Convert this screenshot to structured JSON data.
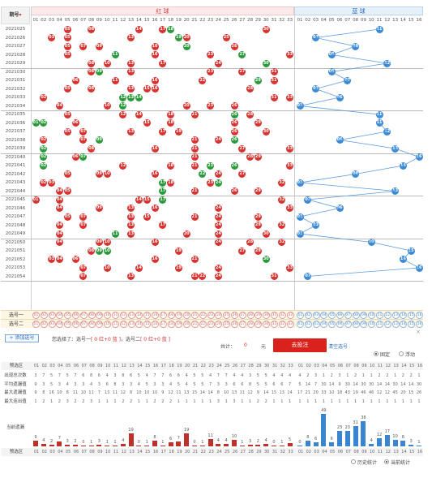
{
  "header": {
    "issue_label": "期号",
    "red_section": "红 球",
    "blue_section": "蓝 球",
    "sort_icon": "sort-down-icon"
  },
  "red_cols": [
    "01",
    "02",
    "03",
    "04",
    "05",
    "06",
    "07",
    "08",
    "09",
    "10",
    "11",
    "12",
    "13",
    "14",
    "15",
    "16",
    "17",
    "18",
    "19",
    "20",
    "21",
    "22",
    "23",
    "24",
    "25",
    "26",
    "27",
    "28",
    "29",
    "30",
    "31",
    "32",
    "33"
  ],
  "blue_cols": [
    "01",
    "02",
    "03",
    "04",
    "05",
    "06",
    "07",
    "08",
    "09",
    "10",
    "11",
    "12",
    "13",
    "14",
    "15",
    "16"
  ],
  "draws": [
    {
      "issue": "2021025",
      "red": [
        "05",
        "08",
        "14",
        "17",
        "18",
        "30"
      ],
      "green": [
        "18"
      ],
      "blue": "11"
    },
    {
      "issue": "2021026",
      "red": [
        "03",
        "05",
        "13",
        "19",
        "20",
        "25"
      ],
      "green": [
        "19"
      ],
      "blue": "03"
    },
    {
      "issue": "2021027",
      "red": [
        "05",
        "07",
        "09",
        "16",
        "20",
        "26"
      ],
      "green": [
        "20"
      ],
      "blue": "08"
    },
    {
      "issue": "2021028",
      "red": [
        "05",
        "11",
        "16",
        "23",
        "27",
        "33"
      ],
      "green": [
        "11",
        "27"
      ],
      "blue": "05"
    },
    {
      "issue": "2021029",
      "red": [
        "08",
        "10",
        "13",
        "17",
        "24",
        "30"
      ],
      "green": [
        "30"
      ],
      "blue": "12"
    },
    {
      "issue": "2021030",
      "red": [
        "08",
        "09",
        "13",
        "23",
        "27",
        "31"
      ],
      "green": [
        "09"
      ],
      "blue": "05"
    },
    {
      "issue": "2021031",
      "red": [
        "06",
        "11",
        "16",
        "22",
        "29",
        "31"
      ],
      "green": [
        "29"
      ],
      "blue": "07"
    },
    {
      "issue": "2021032",
      "red": [
        "05",
        "08",
        "13",
        "15",
        "16",
        "28"
      ],
      "green": [],
      "blue": "03"
    },
    {
      "issue": "2021033",
      "red": [
        "02",
        "12",
        "13",
        "14",
        "31",
        "33"
      ],
      "green": [
        "12",
        "13",
        "14"
      ],
      "blue": "06"
    },
    {
      "issue": "2021034",
      "red": [
        "04",
        "10",
        "12",
        "20",
        "23",
        "26"
      ],
      "green": [
        "12"
      ],
      "blue": "01"
    },
    {
      "issue": "2021035",
      "red": [
        "05",
        "12",
        "14",
        "18",
        "21",
        "26",
        "28"
      ],
      "green": [
        "26"
      ],
      "blue": "11"
    },
    {
      "issue": "2021036",
      "red": [
        "01",
        "02",
        "06",
        "15",
        "18",
        "26",
        "29"
      ],
      "green": [
        "01",
        "02"
      ],
      "blue": "11"
    },
    {
      "issue": "2021037",
      "red": [
        "05",
        "07",
        "13",
        "17",
        "19",
        "26",
        "30"
      ],
      "green": [],
      "blue": "12"
    },
    {
      "issue": "2021038",
      "red": [
        "02",
        "07",
        "09",
        "21",
        "24",
        "26"
      ],
      "green": [
        "09",
        "26"
      ],
      "blue": "06"
    },
    {
      "issue": "2021039",
      "red": [
        "02",
        "08",
        "16",
        "21",
        "27",
        "33"
      ],
      "green": [
        "02"
      ],
      "blue": "13"
    },
    {
      "issue": "2021040",
      "red": [
        "02",
        "06",
        "07",
        "21",
        "28",
        "29"
      ],
      "green": [
        "02",
        "07"
      ],
      "blue": "16"
    },
    {
      "issue": "2021041",
      "red": [
        "02",
        "12",
        "18",
        "21",
        "23",
        "26",
        "33"
      ],
      "green": [
        "02",
        "23",
        "26"
      ],
      "blue": "14"
    },
    {
      "issue": "2021042",
      "red": [
        "05",
        "09",
        "10",
        "16",
        "22",
        "24",
        "27"
      ],
      "green": [
        "22"
      ],
      "blue": "08"
    },
    {
      "issue": "2021043",
      "red": [
        "02",
        "03",
        "17",
        "18",
        "23",
        "24",
        "32"
      ],
      "green": [
        "17",
        "24"
      ],
      "blue": "01"
    },
    {
      "issue": "2021044",
      "red": [
        "04",
        "05",
        "17",
        "21",
        "26",
        "29"
      ],
      "green": [
        "17"
      ],
      "blue": "13"
    },
    {
      "issue": "2021045",
      "red": [
        "01",
        "04",
        "14",
        "15",
        "17",
        "32"
      ],
      "green": [
        "17"
      ],
      "blue": "02"
    },
    {
      "issue": "2021046",
      "red": [
        "04",
        "09",
        "13",
        "16",
        "24",
        "33"
      ],
      "green": [],
      "blue": "06"
    },
    {
      "issue": "2021047",
      "red": [
        "05",
        "07",
        "13",
        "15",
        "21",
        "24",
        "29"
      ],
      "green": [],
      "blue": "01"
    },
    {
      "issue": "2021048",
      "red": [
        "04",
        "07",
        "13",
        "17",
        "24",
        "29",
        "32"
      ],
      "green": [],
      "blue": "03"
    },
    {
      "issue": "2021049",
      "red": [
        "04",
        "11",
        "13",
        "20",
        "24",
        "30"
      ],
      "green": [
        "11"
      ],
      "blue": "01"
    },
    {
      "issue": "2021050",
      "red": [
        "04",
        "09",
        "10",
        "16",
        "24",
        "28",
        "32"
      ],
      "green": [],
      "blue": "10"
    },
    {
      "issue": "2021051",
      "red": [
        "08",
        "09",
        "10",
        "19",
        "27",
        "29"
      ],
      "green": [
        "09",
        "10"
      ],
      "blue": "15"
    },
    {
      "issue": "2021052",
      "red": [
        "03",
        "04",
        "06",
        "16",
        "21",
        "30"
      ],
      "green": [
        "30"
      ],
      "blue": "14"
    },
    {
      "issue": "2021053",
      "red": [
        "07",
        "10",
        "14",
        "19",
        "24",
        "33"
      ],
      "green": [],
      "blue": "16"
    },
    {
      "issue": "2021054",
      "red": [
        "07",
        "13",
        "21",
        "22",
        "24",
        "31"
      ],
      "green": [],
      "blue": "02"
    }
  ],
  "selection": {
    "row1_label": "选号一",
    "row2_label": "选号二",
    "add_button": "+ 添加选号",
    "summary_prefix": "您选择了：",
    "summary_sel1": "选号一",
    "summary_sel1_detail": "[ 0 红+0 蓝 ]",
    "summary_sep": "，选号二",
    "summary_sel2_detail": "[ 0 红+0 蓝 ]",
    "total_label": "共计：",
    "total_value": "0",
    "total_unit": "元",
    "bet_button": "去投注",
    "clear_link": "清空选号",
    "fixed_label": "固定",
    "float_label": "浮动"
  },
  "stats": {
    "header_label": "预选区",
    "rows": [
      {
        "label": "出现总次数",
        "red": [
          "3",
          "7",
          "5",
          "7",
          "5",
          "7",
          "6",
          "8",
          "6",
          "4",
          "3",
          "8",
          "6",
          "5",
          "4",
          "7",
          "7",
          "6",
          "6",
          "4",
          "5",
          "5",
          "4",
          "7",
          "7",
          "4",
          "4",
          "3",
          "5",
          "5",
          "4",
          "4",
          "4"
        ],
        "blue": [
          "4",
          "2",
          "3",
          "1",
          "2",
          "3",
          "1",
          "2",
          "1",
          "1",
          "2",
          "2",
          "1",
          "2",
          "2",
          "1"
        ]
      },
      {
        "label": "平均遗漏值",
        "red": [
          "9",
          "3",
          "5",
          "3",
          "4",
          "3",
          "3",
          "4",
          "3",
          "6",
          "8",
          "3",
          "3",
          "4",
          "5",
          "3",
          "3",
          "4",
          "5",
          "4",
          "5",
          "5",
          "7",
          "3",
          "3",
          "6",
          "6",
          "8",
          "5",
          "5",
          "6",
          "6",
          "7"
        ],
        "blue": [
          "5",
          "14",
          "7",
          "30",
          "14",
          "9",
          "30",
          "14",
          "30",
          "30",
          "14",
          "14",
          "30",
          "14",
          "14",
          "30"
        ]
      },
      {
        "label": "最大遗漏值",
        "red": [
          "9",
          "8",
          "16",
          "10",
          "8",
          "11",
          "10",
          "11",
          "7",
          "13",
          "11",
          "12",
          "8",
          "10",
          "10",
          "10",
          "9",
          "12",
          "11",
          "13",
          "15",
          "14",
          "14",
          "8",
          "10",
          "13",
          "11",
          "12",
          "9",
          "14",
          "15",
          "13",
          "14"
        ],
        "blue": [
          "17",
          "21",
          "20",
          "33",
          "10",
          "18",
          "43",
          "19",
          "46",
          "46",
          "12",
          "12",
          "45",
          "20",
          "15",
          "26"
        ]
      },
      {
        "label": "最大连出值",
        "red": [
          "1",
          "2",
          "1",
          "2",
          "3",
          "2",
          "2",
          "3",
          "1",
          "1",
          "1",
          "2",
          "2",
          "1",
          "1",
          "2",
          "2",
          "2",
          "1",
          "1",
          "1",
          "1",
          "1",
          "3",
          "1",
          "3",
          "1",
          "1",
          "2",
          "2",
          "1",
          "1",
          "1"
        ],
        "blue": [
          "1",
          "1",
          "1",
          "1",
          "1",
          "1",
          "1",
          "1",
          "1",
          "1",
          "1",
          "1",
          "1",
          "1",
          "1",
          "1"
        ]
      }
    ],
    "current_label": "当前遗漏",
    "current_red": [
      "9",
      "4",
      "2",
      "7",
      "3",
      "2",
      "0",
      "1",
      "3",
      "1",
      "1",
      "4",
      "19",
      "0",
      "1",
      "8",
      "1",
      "6",
      "7",
      "19",
      "0",
      "1",
      "11",
      "4",
      "4",
      "10",
      "1",
      "3",
      "2",
      "4",
      "0",
      "1",
      "5"
    ],
    "current_blue": [
      "0",
      "8",
      "6",
      "49",
      "6",
      "23",
      "23",
      "31",
      "38",
      "4",
      "12",
      "17",
      "10",
      "8",
      "3",
      "1"
    ],
    "footer_label": "预选区",
    "history_label": "历史统计",
    "current_stat_label": "当前统计"
  }
}
